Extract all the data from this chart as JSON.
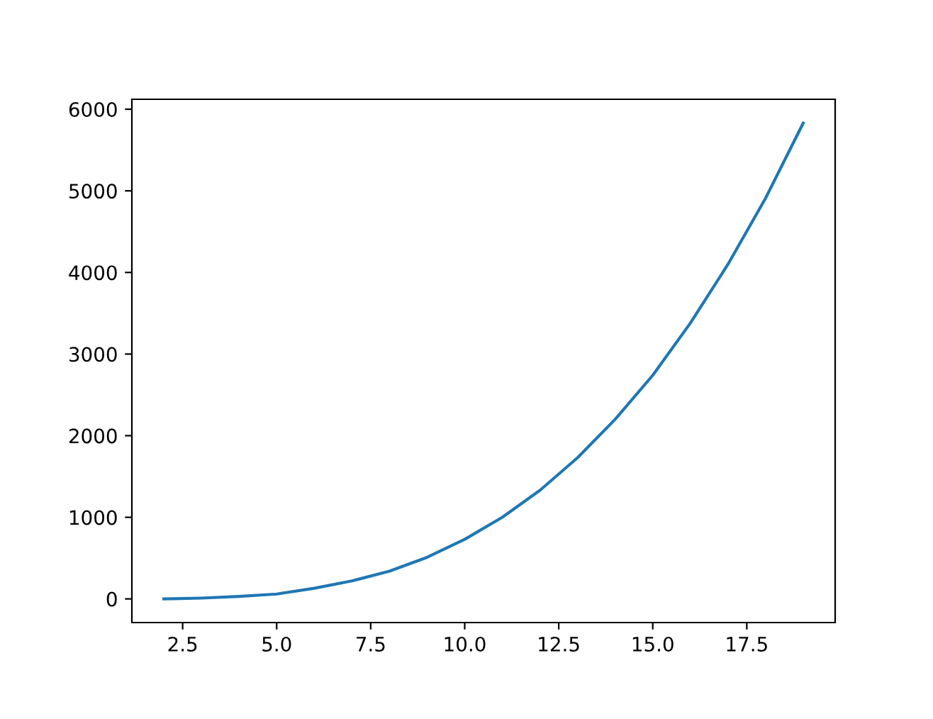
{
  "chart_data": {
    "type": "line",
    "x": [
      2,
      3,
      4,
      5,
      6,
      7,
      8,
      9,
      10,
      11,
      12,
      13,
      14,
      15,
      16,
      17,
      18,
      19
    ],
    "series": [
      {
        "color": "#1f77b4",
        "values": [
          0,
          10,
          30,
          60,
          130,
          220,
          340,
          510,
          730,
          1000,
          1330,
          1730,
          2200,
          2740,
          3380,
          4100,
          4910,
          5830
        ]
      }
    ],
    "xlim": [
      1.15,
      19.85
    ],
    "xticks": [
      {
        "value": 2.5,
        "label": "2.5"
      },
      {
        "value": 5,
        "label": "5.0"
      },
      {
        "value": 7.5,
        "label": "7.5"
      },
      {
        "value": 10,
        "label": "10.0"
      },
      {
        "value": 12.5,
        "label": "12.5"
      },
      {
        "value": 15,
        "label": "15.0"
      },
      {
        "value": 17.5,
        "label": "17.5"
      }
    ],
    "ylim": [
      -290,
      6122
    ],
    "yticks": [
      0,
      1000,
      2000,
      3000,
      4000,
      5000,
      6000
    ],
    "grid": false
  }
}
